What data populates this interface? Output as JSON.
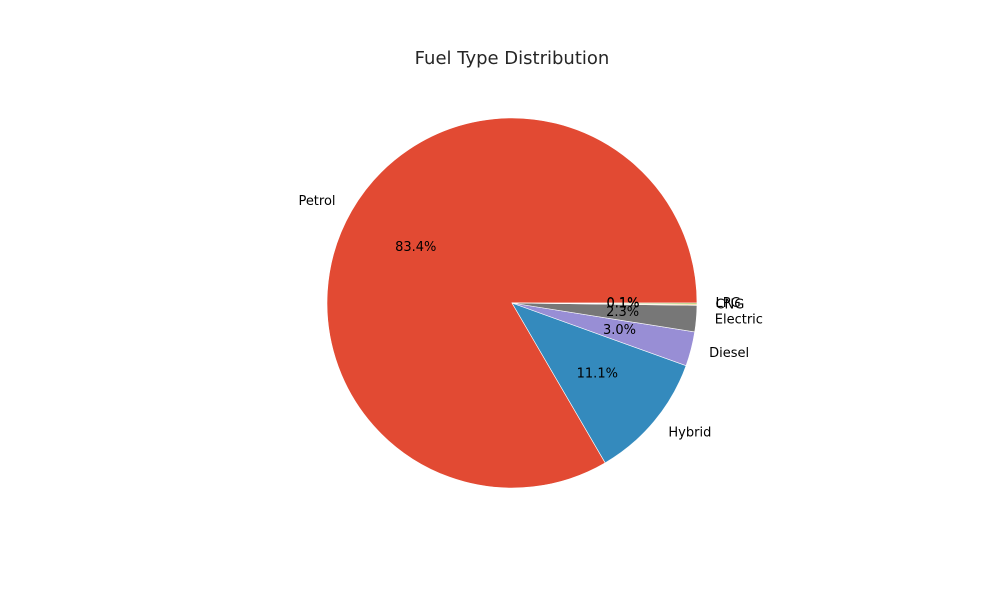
{
  "chart_data": {
    "type": "pie",
    "title": "Fuel Type Distribution",
    "slices": [
      {
        "label": "Petrol",
        "pct_label": "83.4%",
        "value": 83.4,
        "color": "#E24A33"
      },
      {
        "label": "Hybrid",
        "pct_label": "11.1%",
        "value": 11.1,
        "color": "#348ABD"
      },
      {
        "label": "Diesel",
        "pct_label": "3.0%",
        "value": 3.0,
        "color": "#988ED5"
      },
      {
        "label": "Electric",
        "pct_label": "2.3%",
        "value": 2.3,
        "color": "#777777"
      },
      {
        "label": "CNG",
        "pct_label": "0.1%",
        "value": 0.1,
        "color": "#FBC15E"
      },
      {
        "label": "LPG",
        "pct_label": "0.1%",
        "value": 0.1,
        "color": "#8EBA42"
      }
    ]
  }
}
